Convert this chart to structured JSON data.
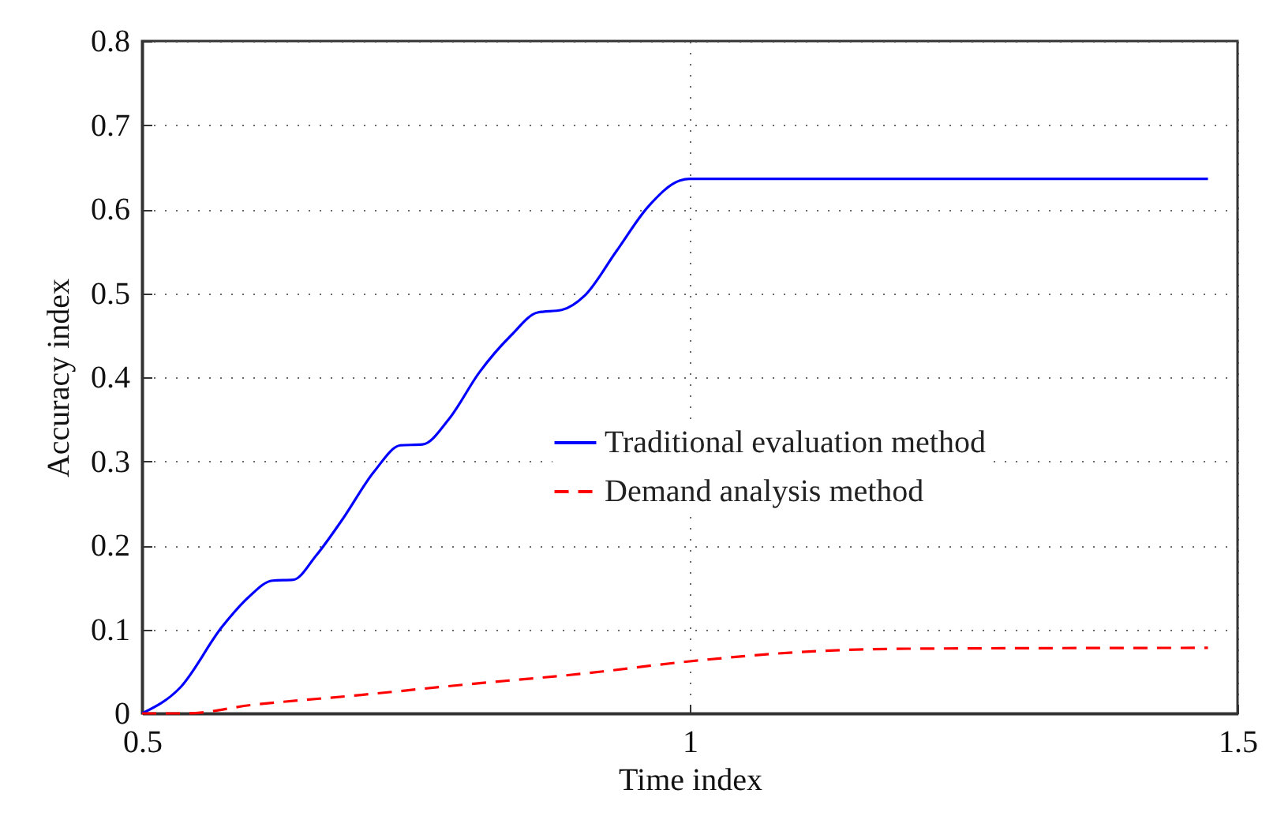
{
  "chart_data": {
    "type": "line",
    "xlabel": "Time index",
    "ylabel": "Accuracy index",
    "xlim": [
      0.5,
      1.5
    ],
    "xticks": [
      0.5,
      1,
      1.5
    ],
    "ylim": [
      0,
      0.8
    ],
    "yticks": [
      0,
      0.1,
      0.2,
      0.3,
      0.4,
      0.5,
      0.6,
      0.7,
      0.8
    ],
    "grid": true,
    "legend": "center",
    "marker": "none",
    "series": [
      {
        "name": "Traditional evaluation method",
        "color": "#0000ff",
        "line_style": "solid",
        "x": [
          0.5,
          0.535,
          0.573,
          0.597,
          0.619,
          0.638,
          0.659,
          0.683,
          0.712,
          0.736,
          0.756,
          0.78,
          0.808,
          0.837,
          0.861,
          0.883,
          0.904,
          0.933,
          0.962,
          0.991,
          1.0,
          1.473
        ],
        "values": [
          0,
          0.031,
          0.103,
          0.138,
          0.158,
          0.159,
          0.188,
          0.231,
          0.288,
          0.319,
          0.32,
          0.35,
          0.406,
          0.45,
          0.477,
          0.48,
          0.497,
          0.55,
          0.603,
          0.634,
          0.636,
          0.636
        ]
      },
      {
        "name": "Demand analysis method",
        "color": "#ff0000",
        "line_style": "dashed",
        "x": [
          0.5,
          0.54,
          0.6,
          0.7,
          0.8,
          0.9,
          1.0,
          1.1,
          1.2,
          1.473
        ],
        "values": [
          0,
          0,
          0.01,
          0.022,
          0.035,
          0.047,
          0.062,
          0.073,
          0.077,
          0.078
        ]
      }
    ]
  }
}
